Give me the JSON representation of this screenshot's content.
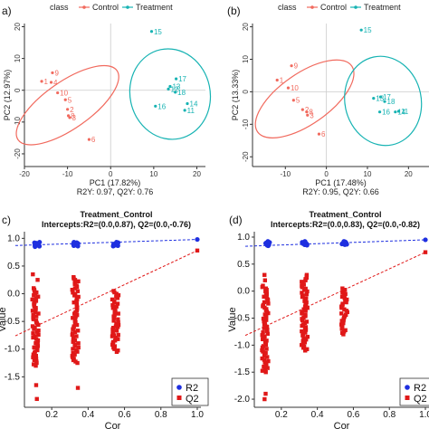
{
  "colors": {
    "control": "#F16A5E",
    "treatment": "#17B3B3",
    "r2": "#1E2FE0",
    "q2": "#E01818",
    "grid": "#cccccc"
  },
  "chart_data": [
    {
      "panel": "a)",
      "type": "scatter",
      "legend_title": "class",
      "legend": [
        "Control",
        "Treatment"
      ],
      "xlabel": "PC1 (17.82%)",
      "xlabel2": "R2Y: 0.97, Q2Y: 0.76",
      "ylabel": "PC2 (12.97%)",
      "xlim": [
        -20,
        22
      ],
      "ylim": [
        -24,
        21
      ],
      "xticks": [
        -20,
        -10,
        0,
        10,
        20
      ],
      "yticks": [
        -20,
        -10,
        0,
        10,
        20
      ],
      "xtick_labels": [
        "-20",
        "-10",
        "0",
        "10",
        "20"
      ],
      "ytick_labels": [
        "-20",
        "-10",
        "0",
        "10",
        "20"
      ],
      "zero_lines": true,
      "series": [
        {
          "name": "Control",
          "points": [
            {
              "label": "9",
              "x": -13.5,
              "y": 5.5
            },
            {
              "label": "1",
              "x": -16.0,
              "y": 2.8
            },
            {
              "label": "4",
              "x": -13.8,
              "y": 2.5
            },
            {
              "label": "10",
              "x": -12.3,
              "y": -0.8
            },
            {
              "label": "5",
              "x": -10.5,
              "y": -3.0
            },
            {
              "label": "2",
              "x": -10.0,
              "y": -6.0
            },
            {
              "label": "8",
              "x": -9.8,
              "y": -8.0
            },
            {
              "label": "3",
              "x": -9.5,
              "y": -8.6
            },
            {
              "label": "6",
              "x": -5.0,
              "y": -15.5
            }
          ],
          "ellipse": {
            "cx": -10.0,
            "cy": -4.7,
            "rx": 14.0,
            "ry": 7.4,
            "angle_deg": -35
          }
        },
        {
          "name": "Treatment",
          "points": [
            {
              "label": "15",
              "x": 9.5,
              "y": 18.5
            },
            {
              "label": "17",
              "x": 15.2,
              "y": 3.6
            },
            {
              "label": "13",
              "x": 13.8,
              "y": 1.2
            },
            {
              "label": "12",
              "x": 13.4,
              "y": 0.4
            },
            {
              "label": "18",
              "x": 15.0,
              "y": -0.6
            },
            {
              "label": "16",
              "x": 10.4,
              "y": -5.0
            },
            {
              "label": "14",
              "x": 17.8,
              "y": -4.2
            },
            {
              "label": "11",
              "x": 17.2,
              "y": -6.3
            }
          ],
          "ellipse": {
            "cx": 13.8,
            "cy": -1.2,
            "rx": 9.3,
            "ry": 14.3,
            "angle_deg": -12
          }
        }
      ]
    },
    {
      "panel": "(b)",
      "type": "scatter",
      "legend_title": "class",
      "legend": [
        "Control",
        "Treatment"
      ],
      "xlabel": "PC1 (17.48%)",
      "xlabel2": "R2Y: 0.95, Q2Y: 0.66",
      "ylabel": "PC2 (13.33%)",
      "xlim": [
        -18,
        25
      ],
      "ylim": [
        -23,
        21
      ],
      "xticks": [
        -10,
        0,
        10,
        20
      ],
      "yticks": [
        -20,
        -10,
        0,
        10,
        20
      ],
      "xtick_labels": [
        "-10",
        "0",
        "10",
        "20"
      ],
      "ytick_labels": [
        "-20",
        "-10",
        "0",
        "10",
        "20"
      ],
      "zero_lines": true,
      "series": [
        {
          "name": "Control",
          "points": [
            {
              "label": "9",
              "x": -8.5,
              "y": 8.0
            },
            {
              "label": "1",
              "x": -12.0,
              "y": 3.6
            },
            {
              "label": "10",
              "x": -9.3,
              "y": 1.2
            },
            {
              "label": "5",
              "x": -8.0,
              "y": -2.6
            },
            {
              "label": "2",
              "x": -5.8,
              "y": -5.5
            },
            {
              "label": "8",
              "x": -4.8,
              "y": -6.2
            },
            {
              "label": "3",
              "x": -4.6,
              "y": -7.2
            },
            {
              "label": "6",
              "x": -1.8,
              "y": -13.0
            }
          ],
          "ellipse": {
            "cx": -5.3,
            "cy": -2.2,
            "rx": 14.0,
            "ry": 7.8,
            "angle_deg": -35
          }
        },
        {
          "name": "Treatment",
          "points": [
            {
              "label": "15",
              "x": 8.5,
              "y": 19.0
            },
            {
              "label": "13",
              "x": 11.5,
              "y": -2.0
            },
            {
              "label": "17",
              "x": 13.2,
              "y": -1.6
            },
            {
              "label": "18",
              "x": 14.2,
              "y": -3.0
            },
            {
              "label": "16",
              "x": 13.0,
              "y": -6.2
            },
            {
              "label": "14",
              "x": 16.8,
              "y": -6.2
            },
            {
              "label": "11",
              "x": 17.6,
              "y": -6.0
            }
          ],
          "ellipse": {
            "cx": 13.8,
            "cy": -2.8,
            "rx": 9.3,
            "ry": 13.8,
            "angle_deg": -12
          }
        }
      ]
    },
    {
      "panel": "c)",
      "type": "scatter",
      "title": "Treatment_Control",
      "subtitle": "Intercepts:R2=(0.0,0.87), Q2=(0.0,-0.76)",
      "xlabel": "Cor",
      "ylabel": "Value",
      "xlim": [
        0.05,
        1.02
      ],
      "ylim": [
        -2.05,
        1.12
      ],
      "xticks": [
        0.2,
        0.4,
        0.6,
        0.8,
        1.0
      ],
      "yticks": [
        1.0,
        0.5,
        0.0,
        -0.5,
        -1.0,
        -1.5
      ],
      "xtick_labels": [
        "0.2",
        "0.4",
        "0.6",
        "0.8",
        "1.0"
      ],
      "ytick_labels": [
        "1.0",
        "0.5",
        "0.0",
        "-0.5",
        "-1.0",
        "-1.5"
      ],
      "legend": [
        "R2",
        "Q2"
      ],
      "r2_line": [
        [
          0.0,
          0.87
        ],
        [
          1.0,
          0.98
        ]
      ],
      "q2_line": [
        [
          0.0,
          -0.76
        ],
        [
          1.0,
          0.78
        ]
      ],
      "r2_groups": [
        {
          "x": 0.12,
          "ymin": 0.85,
          "ymax": 0.93
        },
        {
          "x": 0.33,
          "ymin": 0.86,
          "ymax": 0.93
        },
        {
          "x": 0.55,
          "ymin": 0.86,
          "ymax": 0.93
        },
        {
          "x": 1.0,
          "ymin": 0.98,
          "ymax": 0.98
        }
      ],
      "q2_groups": [
        {
          "x": 0.11,
          "ymin": -1.3,
          "ymax": 0.1,
          "outliers": [
            -1.9,
            -1.65,
            0.35,
            0.25
          ]
        },
        {
          "x": 0.33,
          "ymin": -1.25,
          "ymax": 0.3,
          "outliers": [
            -1.7
          ]
        },
        {
          "x": 0.55,
          "ymin": -1.05,
          "ymax": 0.05,
          "outliers": [
            -0.75,
            -0.6
          ]
        },
        {
          "x": 1.0,
          "ymin": 0.78,
          "ymax": 0.78,
          "outliers": []
        }
      ]
    },
    {
      "panel": "(d)",
      "type": "scatter",
      "title": "Treatment_Control",
      "subtitle": "Intercepts:R2=(0.0,0.83), Q2=(0.0,-0.82)",
      "xlabel": "Cor",
      "ylabel": "Value",
      "xlim": [
        0.05,
        1.02
      ],
      "ylim": [
        -2.15,
        1.1
      ],
      "xticks": [
        0.2,
        0.4,
        0.6,
        0.8,
        1.0
      ],
      "yticks": [
        1.0,
        0.5,
        0.0,
        -0.5,
        -1.0,
        -1.5,
        -2.0
      ],
      "xtick_labels": [
        "0.2",
        "0.4",
        "0.6",
        "0.8",
        "1.0"
      ],
      "ytick_labels": [
        "1.0",
        "0.5",
        "0.0",
        "-0.5",
        "-1.0",
        "-1.5",
        "-2.0"
      ],
      "legend": [
        "R2",
        "Q2"
      ],
      "r2_line": [
        [
          0.0,
          0.83
        ],
        [
          1.0,
          0.95
        ]
      ],
      "q2_line": [
        [
          0.0,
          -0.82
        ],
        [
          1.0,
          0.72
        ]
      ],
      "r2_groups": [
        {
          "x": 0.12,
          "ymin": 0.84,
          "ymax": 0.92
        },
        {
          "x": 0.33,
          "ymin": 0.85,
          "ymax": 0.92
        },
        {
          "x": 0.55,
          "ymin": 0.86,
          "ymax": 0.92
        },
        {
          "x": 1.0,
          "ymin": 0.95,
          "ymax": 0.95
        }
      ],
      "q2_groups": [
        {
          "x": 0.11,
          "ymin": -1.5,
          "ymax": 0.1,
          "outliers": [
            -2.0,
            -1.9,
            0.3,
            0.2
          ]
        },
        {
          "x": 0.33,
          "ymin": -1.1,
          "ymax": 0.3,
          "outliers": [
            -0.3
          ]
        },
        {
          "x": 0.55,
          "ymin": -0.8,
          "ymax": 0.05,
          "outliers": [
            -0.55
          ]
        },
        {
          "x": 1.0,
          "ymin": 0.72,
          "ymax": 0.72,
          "outliers": []
        }
      ]
    }
  ]
}
